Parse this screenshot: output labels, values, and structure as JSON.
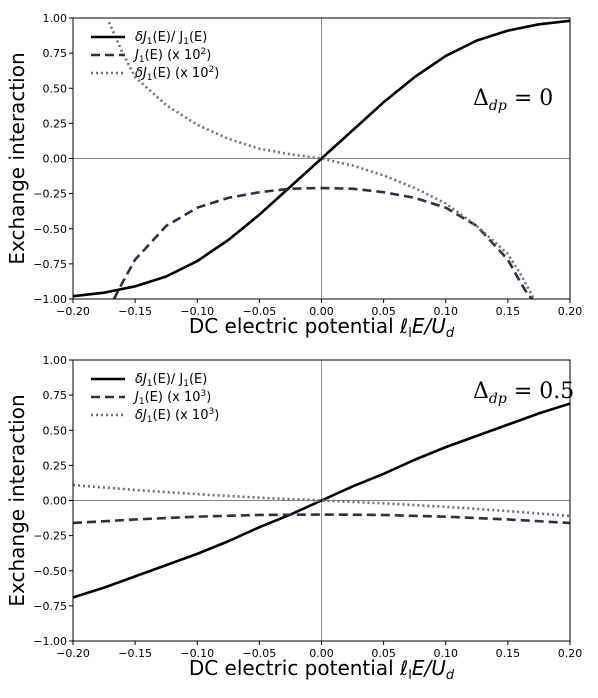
{
  "figure": {
    "ylabel": "Exchange interaction"
  },
  "colors": {
    "solid": "#000000",
    "dashed": "#2e2e45",
    "dotted": "#6b6b8a",
    "zero_lines": "#888888"
  },
  "chart_data": [
    {
      "type": "line",
      "xlabel": "DC electric potential ℓₗE/U_d",
      "xlabel_parts": {
        "pre": "DC electric potential ",
        "l": "ℓ",
        "l_sub": "l",
        "E": "E/U",
        "U_sub": "d"
      },
      "xlim": [
        -0.2,
        0.2
      ],
      "ylim": [
        -1.0,
        1.0
      ],
      "xticks": [
        -0.2,
        -0.15,
        -0.1,
        -0.05,
        0.0,
        0.05,
        0.1,
        0.15,
        0.2
      ],
      "xtick_labels": [
        "−0.20",
        "−0.15",
        "−0.10",
        "−0.05",
        "0.00",
        "0.05",
        "0.10",
        "0.15",
        "0.20"
      ],
      "yticks": [
        -1.0,
        -0.75,
        -0.5,
        -0.25,
        0.0,
        0.25,
        0.5,
        0.75,
        1.0
      ],
      "ytick_labels": [
        "−1.00",
        "−0.75",
        "−0.50",
        "−0.25",
        "0.00",
        "0.25",
        "0.50",
        "0.75",
        "1.00"
      ],
      "grid": false,
      "legend_position": "top-left",
      "annotation": "Δ_dp = 0",
      "annotation_parts": {
        "delta": "Δ",
        "sub": "dp",
        "rest": " = 0"
      },
      "series": [
        {
          "name": "δJ₁(E)/ J₁(E)",
          "name_parts": [
            "δJ",
            "1",
            "(E)/ J",
            "1",
            "(E)"
          ],
          "style": "solid",
          "x": [
            -0.2,
            -0.175,
            -0.15,
            -0.125,
            -0.1,
            -0.075,
            -0.05,
            -0.025,
            0.0,
            0.025,
            0.05,
            0.075,
            0.1,
            0.125,
            0.15,
            0.175,
            0.2
          ],
          "y": [
            -0.98,
            -0.955,
            -0.91,
            -0.84,
            -0.73,
            -0.58,
            -0.4,
            -0.2,
            0.0,
            0.2,
            0.4,
            0.58,
            0.73,
            0.84,
            0.91,
            0.955,
            0.98
          ]
        },
        {
          "name": "J₁(E) (x 10²)",
          "name_parts": [
            "J",
            "1",
            "(E) (x 10",
            "2",
            ")"
          ],
          "style": "dashed",
          "x": [
            -0.167,
            -0.16,
            -0.15,
            -0.125,
            -0.1,
            -0.075,
            -0.05,
            -0.025,
            0.0,
            0.025,
            0.05,
            0.075,
            0.1,
            0.125,
            0.15,
            0.16,
            0.167,
            0.17
          ],
          "y": [
            -1.0,
            -0.88,
            -0.72,
            -0.48,
            -0.35,
            -0.28,
            -0.24,
            -0.215,
            -0.21,
            -0.215,
            -0.24,
            -0.28,
            -0.35,
            -0.48,
            -0.72,
            -0.88,
            -0.98,
            -1.0
          ]
        },
        {
          "name": "δJ₁(E) (x 10²)",
          "name_parts": [
            "δJ",
            "1",
            "(E) (x 10",
            "2",
            ")"
          ],
          "style": "dotted",
          "x": [
            -0.171,
            -0.16,
            -0.15,
            -0.125,
            -0.1,
            -0.075,
            -0.05,
            -0.025,
            0.0,
            0.025,
            0.05,
            0.075,
            0.1,
            0.125,
            0.15,
            0.16,
            0.171
          ],
          "y": [
            0.97,
            0.75,
            0.58,
            0.38,
            0.24,
            0.14,
            0.07,
            0.03,
            0.0,
            -0.05,
            -0.12,
            -0.21,
            -0.32,
            -0.48,
            -0.68,
            -0.82,
            -1.0
          ]
        }
      ]
    },
    {
      "type": "line",
      "xlabel": "DC electric potential ℓₗE/U_d",
      "xlabel_parts": {
        "pre": "DC electric potential ",
        "l": "ℓ",
        "l_sub": "l",
        "E": "E/U",
        "U_sub": "d"
      },
      "xlim": [
        -0.2,
        0.2
      ],
      "ylim": [
        -1.0,
        1.0
      ],
      "xticks": [
        -0.2,
        -0.15,
        -0.1,
        -0.05,
        0.0,
        0.05,
        0.1,
        0.15,
        0.2
      ],
      "xtick_labels": [
        "−0.20",
        "−0.15",
        "−0.10",
        "−0.05",
        "0.00",
        "0.05",
        "0.10",
        "0.15",
        "0.20"
      ],
      "yticks": [
        -1.0,
        -0.75,
        -0.5,
        -0.25,
        0.0,
        0.25,
        0.5,
        0.75,
        1.0
      ],
      "ytick_labels": [
        "−1.00",
        "−0.75",
        "−0.50",
        "−0.25",
        "0.00",
        "0.25",
        "0.50",
        "0.75",
        "1.00"
      ],
      "grid": false,
      "legend_position": "top-left",
      "annotation": "Δ_dp = 0.5",
      "annotation_parts": {
        "delta": "Δ",
        "sub": "dp",
        "rest": " = 0.5"
      },
      "series": [
        {
          "name": "δJ₁(E)/ J₁(E)",
          "name_parts": [
            "δJ",
            "1",
            "(E)/ J",
            "1",
            "(E)"
          ],
          "style": "solid",
          "x": [
            -0.2,
            -0.175,
            -0.15,
            -0.125,
            -0.1,
            -0.075,
            -0.05,
            -0.025,
            0.0,
            0.025,
            0.05,
            0.075,
            0.1,
            0.125,
            0.15,
            0.175,
            0.2
          ],
          "y": [
            -0.69,
            -0.62,
            -0.54,
            -0.46,
            -0.38,
            -0.29,
            -0.19,
            -0.1,
            0.0,
            0.1,
            0.19,
            0.29,
            0.38,
            0.46,
            0.54,
            0.62,
            0.69
          ]
        },
        {
          "name": "J₁(E) (x 10³)",
          "name_parts": [
            "J",
            "1",
            "(E) (x 10",
            "3",
            ")"
          ],
          "style": "dashed",
          "x": [
            -0.2,
            -0.15,
            -0.1,
            -0.05,
            0.0,
            0.05,
            0.1,
            0.15,
            0.2
          ],
          "y": [
            -0.16,
            -0.135,
            -0.115,
            -0.103,
            -0.1,
            -0.103,
            -0.115,
            -0.135,
            -0.16
          ]
        },
        {
          "name": "δJ₁(E) (x 10³)",
          "name_parts": [
            "δJ",
            "1",
            "(E) (x 10",
            "3",
            ")"
          ],
          "style": "dotted",
          "x": [
            -0.2,
            -0.15,
            -0.1,
            -0.05,
            0.0,
            0.05,
            0.1,
            0.15,
            0.2
          ],
          "y": [
            0.11,
            0.075,
            0.045,
            0.02,
            0.0,
            -0.02,
            -0.045,
            -0.075,
            -0.11
          ]
        }
      ]
    }
  ]
}
